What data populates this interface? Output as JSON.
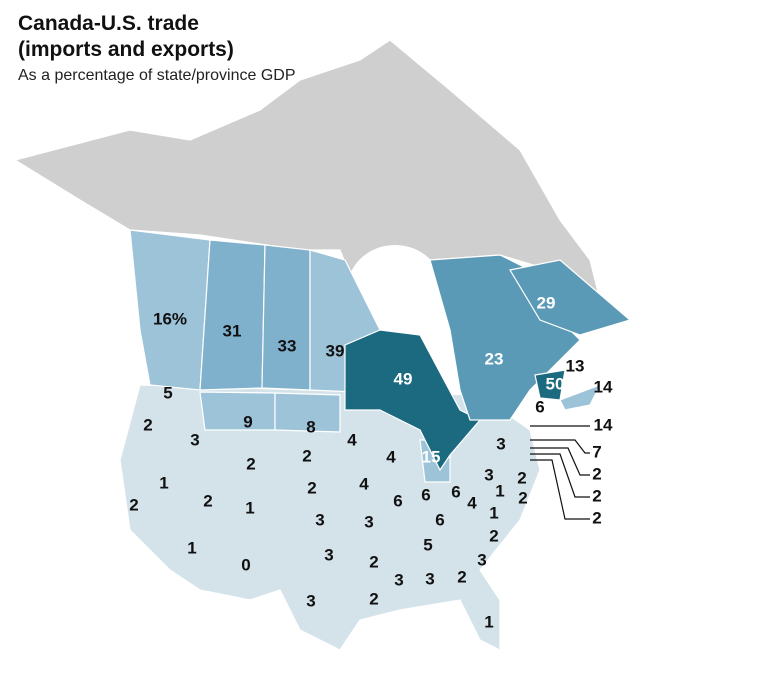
{
  "header": {
    "title": "Canada-U.S. trade",
    "title_line2": "(imports and exports)",
    "subtitle": "As a percentage of state/province GDP"
  },
  "regions": [
    {
      "label": "16%"
    },
    {
      "label": "31"
    },
    {
      "label": "33"
    },
    {
      "label": "39"
    },
    {
      "label": "49"
    },
    {
      "label": "23"
    },
    {
      "label": "29"
    },
    {
      "label": "13"
    },
    {
      "label": "50"
    },
    {
      "label": "14"
    },
    {
      "label": "6"
    },
    {
      "label": "5"
    },
    {
      "label": "2"
    },
    {
      "label": "3"
    },
    {
      "label": "9"
    },
    {
      "label": "8"
    },
    {
      "label": "4"
    },
    {
      "label": "4"
    },
    {
      "label": "15"
    },
    {
      "label": "2"
    },
    {
      "label": "2"
    },
    {
      "label": "1"
    },
    {
      "label": "2"
    },
    {
      "label": "2"
    },
    {
      "label": "1"
    },
    {
      "label": "2"
    },
    {
      "label": "4"
    },
    {
      "label": "6"
    },
    {
      "label": "6"
    },
    {
      "label": "6"
    },
    {
      "label": "3"
    },
    {
      "label": "2"
    },
    {
      "label": "3"
    },
    {
      "label": "3"
    },
    {
      "label": "6"
    },
    {
      "label": "4"
    },
    {
      "label": "1"
    },
    {
      "label": "1"
    },
    {
      "label": "3"
    },
    {
      "label": "2"
    },
    {
      "label": "1"
    },
    {
      "label": "0"
    },
    {
      "label": "3"
    },
    {
      "label": "2"
    },
    {
      "label": "5"
    },
    {
      "label": "2"
    },
    {
      "label": "3"
    },
    {
      "label": "3"
    },
    {
      "label": "2"
    },
    {
      "label": "3"
    },
    {
      "label": "3"
    },
    {
      "label": "2"
    },
    {
      "label": "1"
    },
    {
      "label": "14"
    },
    {
      "label": "7"
    },
    {
      "label": "2"
    },
    {
      "label": "2"
    },
    {
      "label": "2"
    }
  ]
}
